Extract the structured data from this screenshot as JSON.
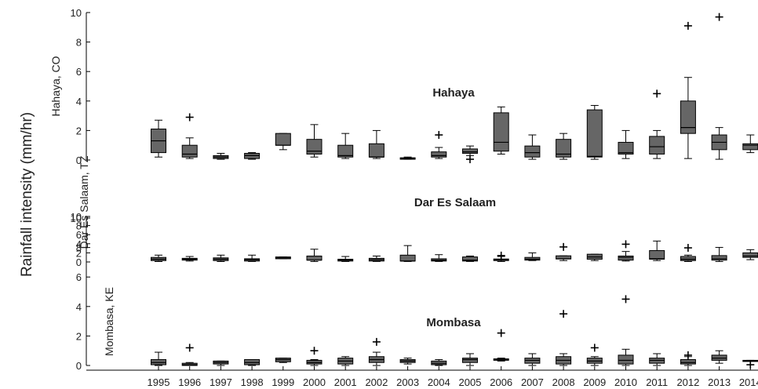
{
  "chart_data": {
    "type": "boxplot",
    "ylabel": "Rainfall intensity (mm/hr)",
    "years": [
      "1995",
      "1996",
      "1997",
      "1998",
      "1999",
      "2000",
      "2001",
      "2002",
      "2003",
      "2004",
      "2005",
      "2006",
      "2007",
      "2008",
      "2009",
      "2010",
      "2011",
      "2012",
      "2013",
      "2014"
    ],
    "colors": {
      "box_fill": "#666666",
      "stroke": "#000000"
    },
    "panels": [
      {
        "name": "Hahaya",
        "axis_label": "Hahaya, CO",
        "yticks": [
          0,
          2,
          4,
          6,
          8,
          10
        ],
        "ylim": [
          0,
          10
        ],
        "boxes": [
          {
            "year": "1995",
            "wl": 0.2,
            "q1": 0.5,
            "med": 1.3,
            "q3": 2.1,
            "wh": 2.7,
            "out": []
          },
          {
            "year": "1996",
            "wl": 0.1,
            "q1": 0.2,
            "med": 0.4,
            "q3": 1.0,
            "wh": 1.5,
            "out": [
              2.9
            ]
          },
          {
            "year": "1997",
            "wl": 0.05,
            "q1": 0.1,
            "med": 0.2,
            "q3": 0.3,
            "wh": 0.45,
            "out": []
          },
          {
            "year": "1998",
            "wl": 0.05,
            "q1": 0.1,
            "med": 0.3,
            "q3": 0.45,
            "wh": 0.5,
            "out": []
          },
          {
            "year": "1999",
            "wl": 0.7,
            "q1": 1.0,
            "med": 1.0,
            "q3": 1.8,
            "wh": 1.8,
            "out": []
          },
          {
            "year": "2000",
            "wl": 0.2,
            "q1": 0.4,
            "med": 0.6,
            "q3": 1.4,
            "wh": 2.4,
            "out": []
          },
          {
            "year": "2001",
            "wl": 0.1,
            "q1": 0.2,
            "med": 0.3,
            "q3": 1.0,
            "wh": 1.8,
            "out": []
          },
          {
            "year": "2002",
            "wl": 0.1,
            "q1": 0.2,
            "med": 0.2,
            "q3": 1.1,
            "wh": 2.0,
            "out": []
          },
          {
            "year": "2003",
            "wl": 0.05,
            "q1": 0.05,
            "med": 0.1,
            "q3": 0.15,
            "wh": 0.2,
            "out": []
          },
          {
            "year": "2004",
            "wl": 0.1,
            "q1": 0.2,
            "med": 0.3,
            "q3": 0.55,
            "wh": 0.85,
            "out": [
              1.7
            ]
          },
          {
            "year": "2005",
            "wl": 0.3,
            "q1": 0.45,
            "med": 0.55,
            "q3": 0.75,
            "wh": 0.95,
            "out": [
              0.05
            ]
          },
          {
            "year": "2006",
            "wl": 0.4,
            "q1": 0.6,
            "med": 1.2,
            "q3": 3.2,
            "wh": 3.6,
            "out": []
          },
          {
            "year": "2007",
            "wl": 0.05,
            "q1": 0.2,
            "med": 0.5,
            "q3": 0.95,
            "wh": 1.7,
            "out": []
          },
          {
            "year": "2008",
            "wl": 0.05,
            "q1": 0.2,
            "med": 0.4,
            "q3": 1.4,
            "wh": 1.8,
            "out": []
          },
          {
            "year": "2009",
            "wl": 0.05,
            "q1": 0.2,
            "med": 0.25,
            "q3": 3.4,
            "wh": 3.7,
            "out": []
          },
          {
            "year": "2010",
            "wl": 0.1,
            "q1": 0.4,
            "med": 0.5,
            "q3": 1.2,
            "wh": 2.0,
            "out": []
          },
          {
            "year": "2011",
            "wl": 0.1,
            "q1": 0.4,
            "med": 0.9,
            "q3": 1.6,
            "wh": 2.0,
            "out": [
              4.5
            ]
          },
          {
            "year": "2012",
            "wl": 0.1,
            "q1": 1.8,
            "med": 2.2,
            "q3": 4.0,
            "wh": 5.6,
            "out": [
              9.1
            ]
          },
          {
            "year": "2013",
            "wl": 0.05,
            "q1": 0.7,
            "med": 1.2,
            "q3": 1.7,
            "wh": 2.2,
            "out": [
              9.7
            ]
          },
          {
            "year": "2014",
            "wl": 0.5,
            "q1": 0.7,
            "med": 1.0,
            "q3": 1.1,
            "wh": 1.7,
            "out": []
          }
        ]
      },
      {
        "name": "Dar Es Salaam",
        "axis_label": "Dar Es Salaam, TZ",
        "yticks": [
          0,
          2,
          4,
          6,
          8,
          10
        ],
        "ylim": [
          0,
          10
        ],
        "boxes": [
          {
            "year": "1995",
            "wl": 0.1,
            "q1": 0.3,
            "med": 0.6,
            "q3": 1.0,
            "wh": 1.5,
            "out": []
          },
          {
            "year": "1996",
            "wl": 0.2,
            "q1": 0.4,
            "med": 0.6,
            "q3": 0.8,
            "wh": 1.2,
            "out": []
          },
          {
            "year": "1997",
            "wl": 0.1,
            "q1": 0.3,
            "med": 0.6,
            "q3": 0.9,
            "wh": 1.5,
            "out": []
          },
          {
            "year": "1998",
            "wl": 0.1,
            "q1": 0.2,
            "med": 0.5,
            "q3": 0.7,
            "wh": 1.5,
            "out": []
          },
          {
            "year": "1999",
            "wl": 0.7,
            "q1": 0.7,
            "med": 0.9,
            "q3": 1.1,
            "wh": 1.1,
            "out": []
          },
          {
            "year": "2000",
            "wl": 0.1,
            "q1": 0.4,
            "med": 0.4,
            "q3": 1.3,
            "wh": 2.8,
            "out": []
          },
          {
            "year": "2001",
            "wl": 0.1,
            "q1": 0.2,
            "med": 0.4,
            "q3": 0.6,
            "wh": 1.2,
            "out": []
          },
          {
            "year": "2002",
            "wl": 0.1,
            "q1": 0.2,
            "med": 0.5,
            "q3": 0.8,
            "wh": 1.3,
            "out": []
          },
          {
            "year": "2003",
            "wl": 0.1,
            "q1": 0.2,
            "med": 0.2,
            "q3": 1.5,
            "wh": 3.6,
            "out": []
          },
          {
            "year": "2004",
            "wl": 0.1,
            "q1": 0.2,
            "med": 0.4,
            "q3": 0.7,
            "wh": 1.6,
            "out": []
          },
          {
            "year": "2005",
            "wl": 0.1,
            "q1": 0.2,
            "med": 0.4,
            "q3": 1.1,
            "wh": 1.3,
            "out": []
          },
          {
            "year": "2006",
            "wl": 0.1,
            "q1": 0.3,
            "med": 0.5,
            "q3": 0.65,
            "wh": 1.2,
            "out": [
              1.4
            ]
          },
          {
            "year": "2007",
            "wl": 0.3,
            "q1": 0.4,
            "med": 0.6,
            "q3": 1.0,
            "wh": 2.0,
            "out": []
          },
          {
            "year": "2008",
            "wl": 0.3,
            "q1": 0.65,
            "med": 0.7,
            "q3": 1.35,
            "wh": 1.35,
            "out": [
              3.3
            ]
          },
          {
            "year": "2009",
            "wl": 0.3,
            "q1": 0.6,
            "med": 1.1,
            "q3": 1.7,
            "wh": 1.7,
            "out": []
          },
          {
            "year": "2010",
            "wl": 0.2,
            "q1": 0.4,
            "med": 1.0,
            "q3": 1.3,
            "wh": 2.3,
            "out": [
              3.9
            ]
          },
          {
            "year": "2011",
            "wl": 0.3,
            "q1": 0.6,
            "med": 0.7,
            "q3": 2.5,
            "wh": 4.6,
            "out": []
          },
          {
            "year": "2012",
            "wl": 0.1,
            "q1": 0.3,
            "med": 0.6,
            "q3": 1.2,
            "wh": 1.5,
            "out": [
              3.1
            ]
          },
          {
            "year": "2013",
            "wl": 0.1,
            "q1": 0.4,
            "med": 0.7,
            "q3": 1.4,
            "wh": 3.2,
            "out": []
          },
          {
            "year": "2014",
            "wl": 0.5,
            "q1": 1.0,
            "med": 1.3,
            "q3": 2.0,
            "wh": 2.7,
            "out": []
          }
        ]
      },
      {
        "name": "Mombasa",
        "axis_label": "Mombasa, KE",
        "yticks": [
          0,
          2,
          4,
          6,
          8,
          10
        ],
        "ylim": [
          0,
          10
        ],
        "boxes": [
          {
            "year": "1995",
            "wl": 0.0,
            "q1": 0.05,
            "med": 0.2,
            "q3": 0.4,
            "wh": 0.9,
            "out": []
          },
          {
            "year": "1996",
            "wl": 0.0,
            "q1": 0.0,
            "med": 0.05,
            "q3": 0.15,
            "wh": 0.2,
            "out": [
              1.2
            ]
          },
          {
            "year": "1997",
            "wl": 0.0,
            "q1": 0.1,
            "med": 0.2,
            "q3": 0.3,
            "wh": 0.3,
            "out": []
          },
          {
            "year": "1998",
            "wl": 0.0,
            "q1": 0.05,
            "med": 0.2,
            "q3": 0.4,
            "wh": 0.4,
            "out": []
          },
          {
            "year": "1999",
            "wl": 0.2,
            "q1": 0.25,
            "med": 0.4,
            "q3": 0.5,
            "wh": 0.5,
            "out": []
          },
          {
            "year": "2000",
            "wl": 0.0,
            "q1": 0.1,
            "med": 0.2,
            "q3": 0.35,
            "wh": 0.4,
            "out": [
              1.0
            ]
          },
          {
            "year": "2001",
            "wl": 0.0,
            "q1": 0.1,
            "med": 0.3,
            "q3": 0.5,
            "wh": 0.6,
            "out": []
          },
          {
            "year": "2002",
            "wl": 0.0,
            "q1": 0.2,
            "med": 0.4,
            "q3": 0.6,
            "wh": 0.9,
            "out": [
              1.6
            ]
          },
          {
            "year": "2003",
            "wl": 0.1,
            "q1": 0.2,
            "med": 0.3,
            "q3": 0.4,
            "wh": 0.5,
            "out": []
          },
          {
            "year": "2004",
            "wl": 0.0,
            "q1": 0.05,
            "med": 0.15,
            "q3": 0.3,
            "wh": 0.4,
            "out": []
          },
          {
            "year": "2005",
            "wl": 0.0,
            "q1": 0.2,
            "med": 0.4,
            "q3": 0.5,
            "wh": 0.8,
            "out": []
          },
          {
            "year": "2006",
            "wl": 0.3,
            "q1": 0.35,
            "med": 0.4,
            "q3": 0.45,
            "wh": 0.5,
            "out": [
              2.2
            ]
          },
          {
            "year": "2007",
            "wl": 0.0,
            "q1": 0.15,
            "med": 0.35,
            "q3": 0.5,
            "wh": 0.8,
            "out": []
          },
          {
            "year": "2008",
            "wl": 0.0,
            "q1": 0.1,
            "med": 0.35,
            "q3": 0.6,
            "wh": 0.8,
            "out": [
              3.5
            ]
          },
          {
            "year": "2009",
            "wl": 0.0,
            "q1": 0.15,
            "med": 0.3,
            "q3": 0.5,
            "wh": 0.6,
            "out": [
              1.2
            ]
          },
          {
            "year": "2010",
            "wl": 0.0,
            "q1": 0.1,
            "med": 0.35,
            "q3": 0.7,
            "wh": 1.1,
            "out": [
              4.5
            ]
          },
          {
            "year": "2011",
            "wl": 0.0,
            "q1": 0.15,
            "med": 0.35,
            "q3": 0.5,
            "wh": 0.8,
            "out": []
          },
          {
            "year": "2012",
            "wl": 0.0,
            "q1": 0.1,
            "med": 0.2,
            "q3": 0.4,
            "wh": 0.6,
            "out": [
              0.7
            ]
          },
          {
            "year": "2013",
            "wl": 0.15,
            "q1": 0.35,
            "med": 0.5,
            "q3": 0.7,
            "wh": 1.0,
            "out": []
          },
          {
            "year": "2014",
            "wl": 0.3,
            "q1": 0.3,
            "med": 0.3,
            "q3": 0.35,
            "wh": 0.35,
            "out": [
              0.05
            ]
          }
        ]
      }
    ]
  }
}
